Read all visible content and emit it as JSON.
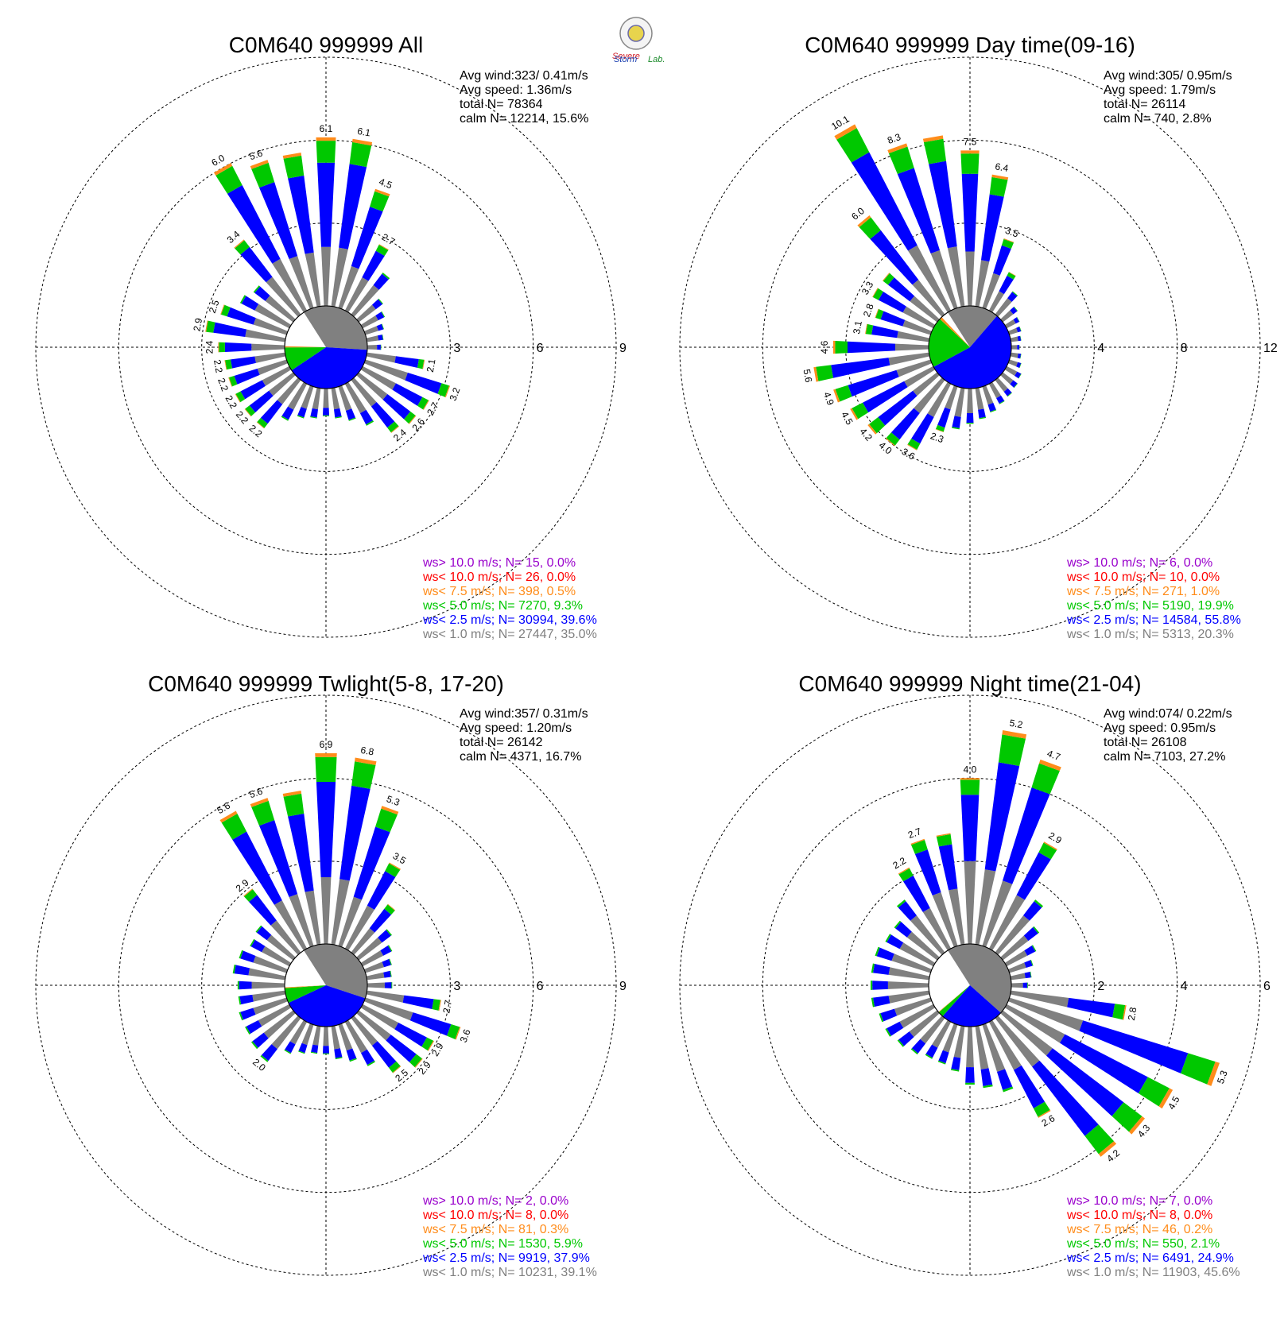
{
  "colors": {
    "bin_over_10": "#9900cc",
    "bin_lt_10": "#ff0000",
    "bin_lt_7_5": "#ff8c1a",
    "bin_lt_5": "#00c800",
    "bin_lt_2_5": "#0000ff",
    "bin_lt_1": "#808080",
    "grid": "#000000"
  },
  "logo": {
    "line1": "Severe",
    "line2": "Storm",
    "line3": "Lab."
  },
  "chart_data": [
    {
      "type": "windrose",
      "title": "C0M640 999999 All",
      "stats": {
        "avg_wind": "Avg wind:323/ 0.41m/s",
        "avg_speed": "Avg speed: 1.36m/s",
        "total_n": "total N=      78364",
        "calm_n": "calm N=  12214,  15.6%"
      },
      "radial_ticks": [
        3,
        6,
        9
      ],
      "rmax": 9,
      "calm_pie": {
        "gray": 0.35,
        "blue": 0.396,
        "green": 0.093,
        "orange": 0.005
      },
      "legend": [
        "ws> 10.0 m/s; N=    15,  0.0%",
        "ws< 10.0 m/s; N=    26,  0.0%",
        "ws<  7.5 m/s; N=   398,  0.5%",
        "ws<  5.0 m/s; N=  7270,  9.3%",
        "ws<  2.5 m/s; N= 30994, 39.6%",
        "ws<  1.0 m/s; N= 27447, 35.0%"
      ],
      "directions": [
        0,
        10,
        20,
        30,
        40,
        50,
        60,
        70,
        80,
        90,
        100,
        110,
        120,
        130,
        140,
        150,
        160,
        170,
        180,
        190,
        200,
        210,
        220,
        230,
        240,
        250,
        260,
        270,
        280,
        290,
        300,
        310,
        320,
        330,
        340,
        350
      ],
      "totals": [
        6.1,
        6.1,
        4.5,
        2.7,
        1.9,
        1.1,
        0.9,
        0.7,
        0.6,
        0.5,
        2.1,
        3.2,
        2.7,
        2.6,
        2.4,
        1.7,
        1.3,
        1.1,
        1.0,
        1.1,
        1.2,
        1.5,
        2.2,
        2.2,
        2.2,
        2.2,
        2.2,
        2.4,
        2.9,
        2.5,
        2.0,
        1.8,
        3.4,
        6.0,
        5.6,
        5.6
      ],
      "labeled": [
        0,
        10,
        20,
        30,
        100,
        110,
        120,
        130,
        140,
        220,
        230,
        240,
        250,
        260,
        270,
        280,
        290,
        320,
        330,
        340
      ],
      "label_values": {
        "0": "6.1",
        "10": "6.1",
        "20": "4.5",
        "30": "2.7",
        "100": "2.1",
        "110": "3.2",
        "120": "2.7",
        "130": "2.6",
        "140": "2.4",
        "220": "2.2",
        "230": "2.2",
        "240": "2.2",
        "250": "2.2",
        "260": "2.2",
        "270": "2.4",
        "280": "2.9",
        "290": "2.5",
        "320": "3.4",
        "330": "6.0",
        "340": "5.6"
      }
    },
    {
      "type": "windrose",
      "title": "C0M640 999999 Day time(09-16)",
      "stats": {
        "avg_wind": "Avg wind:305/ 0.95m/s",
        "avg_speed": "Avg speed: 1.79m/s",
        "total_n": "total N=      26114",
        "calm_n": "calm N=    740,   2.8%"
      },
      "radial_ticks": [
        4,
        8,
        12
      ],
      "rmax": 12,
      "calm_pie": {
        "gray": 0.203,
        "blue": 0.558,
        "green": 0.199,
        "orange": 0.01
      },
      "legend": [
        "ws> 10.0 m/s; N=     6,  0.0%",
        "ws< 10.0 m/s; N=    10,  0.0%",
        "ws<  7.5 m/s; N=   271,  1.0%",
        "ws<  5.0 m/s; N=  5190, 19.9%",
        "ws<  2.5 m/s; N= 14584, 55.8%",
        "ws<  1.0 m/s; N=  5313, 20.3%"
      ],
      "directions": [
        0,
        10,
        20,
        30,
        40,
        50,
        60,
        70,
        80,
        90,
        100,
        110,
        120,
        130,
        140,
        150,
        160,
        170,
        180,
        190,
        200,
        210,
        220,
        230,
        240,
        250,
        260,
        270,
        280,
        290,
        300,
        310,
        320,
        330,
        340,
        350
      ],
      "totals": [
        7.5,
        6.4,
        3.5,
        2.1,
        1.4,
        0.9,
        0.7,
        0.6,
        0.5,
        0.4,
        0.5,
        0.6,
        0.8,
        0.9,
        1.0,
        1.1,
        1.3,
        1.5,
        1.7,
        2.0,
        2.3,
        3.6,
        4.0,
        4.2,
        4.5,
        4.9,
        5.6,
        4.6,
        3.1,
        2.8,
        3.3,
        3.3,
        6.0,
        10.1,
        8.3,
        8.3
      ],
      "labeled": [
        0,
        10,
        20,
        200,
        210,
        220,
        230,
        240,
        250,
        260,
        270,
        280,
        290,
        300,
        310,
        320,
        330,
        340
      ],
      "label_values": {
        "0": "7.5",
        "10": "6.4",
        "20": "3.5",
        "200": "2.3",
        "210": "3.6",
        "220": "4.0",
        "230": "4.2",
        "240": "4.5",
        "250": "4.9",
        "260": "5.6",
        "270": "4.6",
        "280": "3.1",
        "290": "2.8",
        "300": "3.3",
        "320": "6.0",
        "330": "10.1",
        "340": "8.3"
      }
    },
    {
      "type": "windrose",
      "title": "C0M640 999999 Twlight(5-8, 17-20)",
      "stats": {
        "avg_wind": "Avg wind:357/ 0.31m/s",
        "avg_speed": "Avg speed: 1.20m/s",
        "total_n": "total N=      26142",
        "calm_n": "calm N=   4371,  16.7%"
      },
      "radial_ticks": [
        3,
        6,
        9
      ],
      "rmax": 9,
      "calm_pie": {
        "gray": 0.391,
        "blue": 0.379,
        "green": 0.059,
        "orange": 0.003
      },
      "legend": [
        "ws> 10.0 m/s; N=     2,  0.0%",
        "ws< 10.0 m/s; N=     8,  0.0%",
        "ws<  7.5 m/s; N=    81,  0.3%",
        "ws<  5.0 m/s; N=  1530,  5.9%",
        "ws<  2.5 m/s; N=  9919, 37.9%",
        "ws<  1.0 m/s; N= 10231, 39.1%"
      ],
      "directions": [
        0,
        10,
        20,
        30,
        40,
        50,
        60,
        70,
        80,
        90,
        100,
        110,
        120,
        130,
        140,
        150,
        160,
        170,
        180,
        190,
        200,
        210,
        220,
        230,
        240,
        250,
        260,
        270,
        280,
        290,
        300,
        310,
        320,
        330,
        340,
        350
      ],
      "totals": [
        6.9,
        6.8,
        5.3,
        3.5,
        2.2,
        1.5,
        1.2,
        1.0,
        0.9,
        0.9,
        2.7,
        3.6,
        2.9,
        2.9,
        2.5,
        1.8,
        1.4,
        1.2,
        1.0,
        1.0,
        1.1,
        1.3,
        2.0,
        1.9,
        1.8,
        1.8,
        1.7,
        1.7,
        1.9,
        1.8,
        1.6,
        1.7,
        2.9,
        5.6,
        5.6,
        5.6
      ],
      "labeled": [
        0,
        10,
        20,
        30,
        100,
        110,
        120,
        130,
        140,
        220,
        320,
        330,
        340
      ],
      "label_values": {
        "0": "6.9",
        "10": "6.8",
        "20": "5.3",
        "30": "3.5",
        "100": "2.7",
        "110": "3.6",
        "120": "2.9",
        "130": "2.9",
        "140": "2.5",
        "220": "2.0",
        "320": "2.9",
        "330": "5.6",
        "340": "5.6"
      }
    },
    {
      "type": "windrose",
      "title": "C0M640 999999 Night time(21-04)",
      "stats": {
        "avg_wind": "Avg wind:074/ 0.22m/s",
        "avg_speed": "Avg speed: 0.95m/s",
        "total_n": "total N=      26108",
        "calm_n": "calm N=   7103,  27.2%"
      },
      "radial_ticks": [
        2,
        4,
        6
      ],
      "rmax": 6,
      "calm_pie": {
        "gray": 0.456,
        "blue": 0.249,
        "green": 0.021,
        "orange": 0.002
      },
      "legend": [
        "ws> 10.0 m/s; N=     7,  0.0%",
        "ws< 10.0 m/s; N=     8,  0.0%",
        "ws<  7.5 m/s; N=    46,  0.2%",
        "ws<  5.0 m/s; N=   550,  2.1%",
        "ws<  2.5 m/s; N=  6491, 24.9%",
        "ws<  1.0 m/s; N= 11903, 45.6%"
      ],
      "directions": [
        0,
        10,
        20,
        30,
        40,
        50,
        60,
        70,
        80,
        90,
        100,
        110,
        120,
        130,
        140,
        150,
        160,
        170,
        180,
        190,
        200,
        210,
        220,
        230,
        240,
        250,
        260,
        270,
        280,
        290,
        300,
        310,
        320,
        330,
        340,
        350
      ],
      "totals": [
        4.0,
        5.2,
        4.7,
        2.9,
        1.6,
        1.1,
        0.8,
        0.6,
        0.5,
        0.4,
        2.8,
        5.3,
        4.5,
        4.3,
        4.2,
        2.6,
        1.7,
        1.5,
        1.4,
        1.1,
        1.0,
        1.0,
        1.1,
        1.2,
        1.3,
        1.3,
        1.4,
        1.4,
        1.4,
        1.4,
        1.3,
        1.3,
        1.6,
        2.2,
        2.7,
        2.7
      ],
      "labeled": [
        0,
        10,
        20,
        30,
        100,
        110,
        120,
        130,
        140,
        150,
        330,
        340
      ],
      "label_values": {
        "0": "4.0",
        "10": "5.2",
        "20": "4.7",
        "30": "2.9",
        "100": "2.8",
        "110": "5.3",
        "120": "4.5",
        "130": "4.3",
        "140": "4.2",
        "150": "2.6",
        "330": "2.2",
        "340": "2.7"
      }
    }
  ]
}
